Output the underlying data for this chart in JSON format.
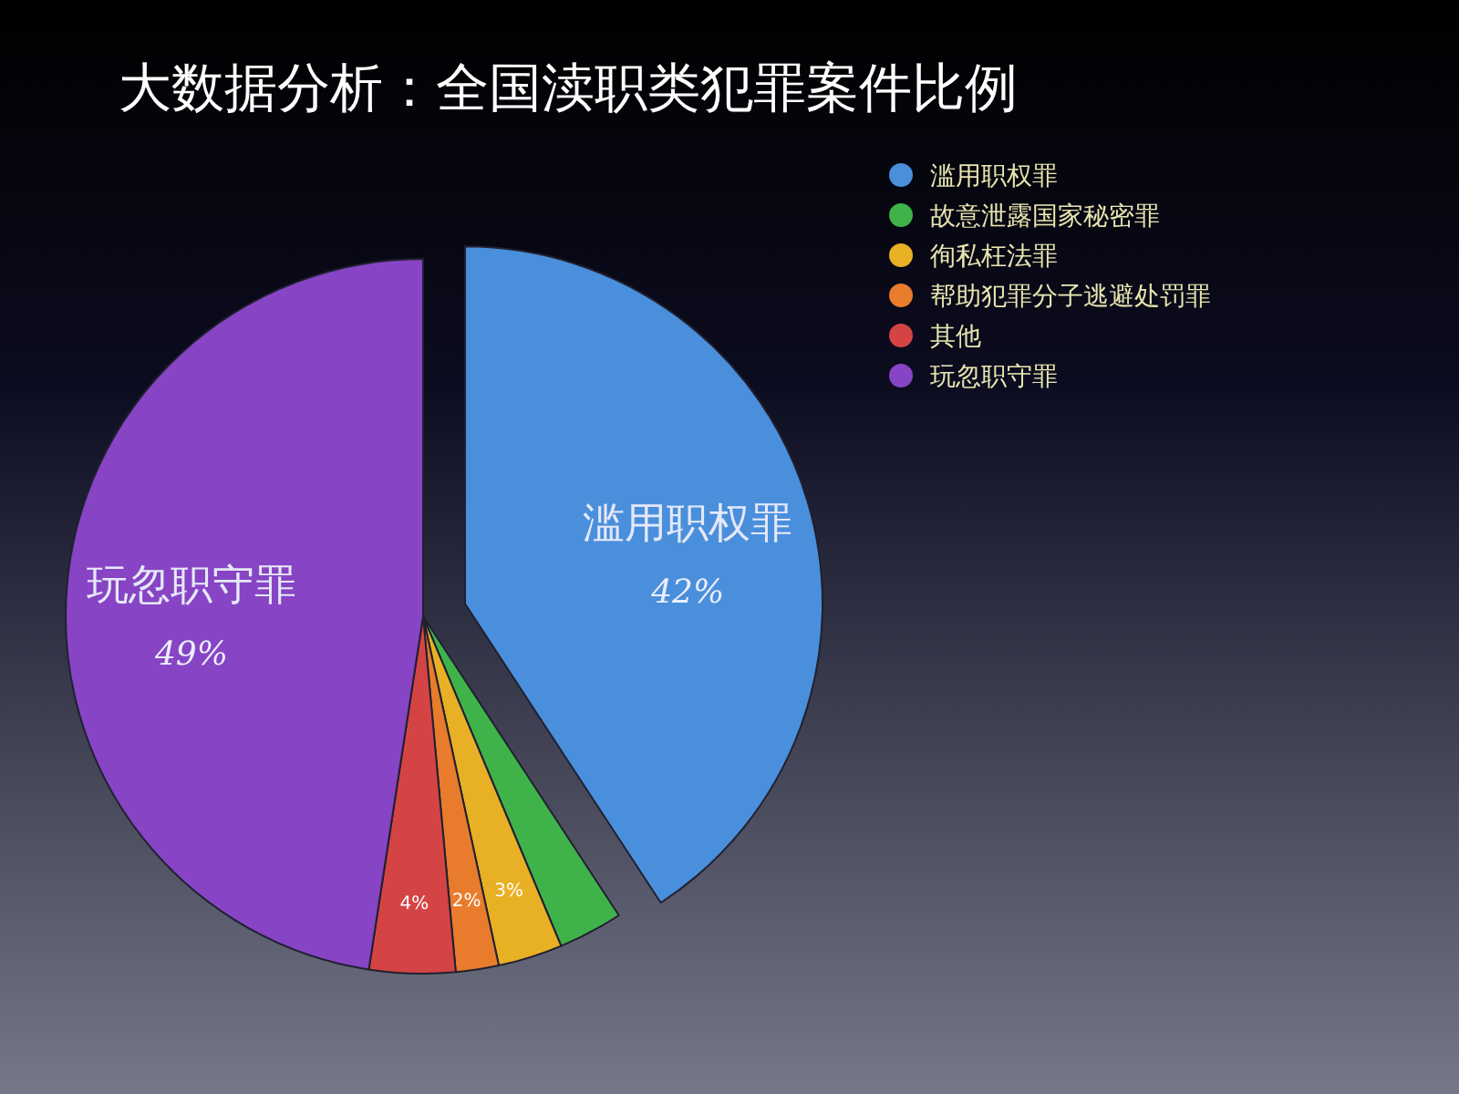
{
  "chart_data": {
    "type": "pie",
    "title": "大数据分析：全国渎职类犯罪案件比例",
    "categories": [
      "滥用职权罪",
      "故意泄露国家秘密罪",
      "徇私枉法罪",
      "帮助犯罪分子逃避处罚罪",
      "其他",
      "玩忽职守罪"
    ],
    "values": [
      42,
      3,
      3,
      2,
      4,
      49
    ],
    "colors": [
      "#4a8fdc",
      "#3fb34a",
      "#e8b024",
      "#e87c2c",
      "#d44444",
      "#8744c4"
    ],
    "value_labels": [
      "42%",
      null,
      "3%",
      "2%",
      "4%",
      "49%"
    ],
    "legend": "top right"
  }
}
